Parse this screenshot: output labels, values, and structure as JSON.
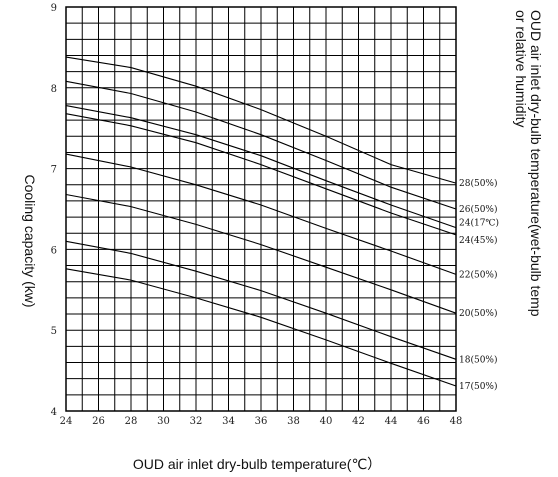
{
  "chart_data": {
    "type": "line",
    "title": "",
    "xlabel": "OUD air inlet dry-bulb temperature(℃）",
    "ylabel": "Cooling capacity (kw)",
    "right_label_line1": "OUD air inlet dry-bulb temperature(wet-bulb temp",
    "right_label_line2": "or relative humidity",
    "xlim": [
      24,
      48
    ],
    "ylim": [
      4,
      9
    ],
    "x_ticks": [
      "24",
      "26",
      "28",
      "30",
      "32",
      "34",
      "36",
      "38",
      "40",
      "42",
      "44",
      "46",
      "48"
    ],
    "y_ticks": [
      "4",
      "5",
      "6",
      "7",
      "8",
      "9"
    ],
    "grid": true,
    "x": [
      24,
      28,
      32,
      36,
      40,
      44,
      48
    ],
    "series": [
      {
        "name": "28(50%)",
        "values": [
          8.38,
          8.25,
          8.02,
          7.73,
          7.4,
          7.05,
          6.82
        ]
      },
      {
        "name": "26(50%)",
        "values": [
          8.08,
          7.93,
          7.7,
          7.42,
          7.1,
          6.77,
          6.5
        ]
      },
      {
        "name": "24(17℃)",
        "values": [
          7.78,
          7.63,
          7.42,
          7.16,
          6.85,
          6.55,
          6.27
        ]
      },
      {
        "name": "24(45%)",
        "values": [
          7.68,
          7.53,
          7.32,
          7.05,
          6.75,
          6.45,
          6.18
        ]
      },
      {
        "name": "22(50%)",
        "values": [
          7.18,
          7.02,
          6.8,
          6.55,
          6.26,
          5.98,
          5.69
        ]
      },
      {
        "name": "20(50%)",
        "values": [
          6.68,
          6.53,
          6.31,
          6.06,
          5.78,
          5.5,
          5.21
        ]
      },
      {
        "name": "18(50%)",
        "values": [
          6.1,
          5.95,
          5.73,
          5.49,
          5.21,
          4.92,
          4.64
        ]
      },
      {
        "name": "17(50%)",
        "values": [
          5.76,
          5.62,
          5.4,
          5.16,
          4.88,
          4.59,
          4.31
        ]
      }
    ]
  }
}
